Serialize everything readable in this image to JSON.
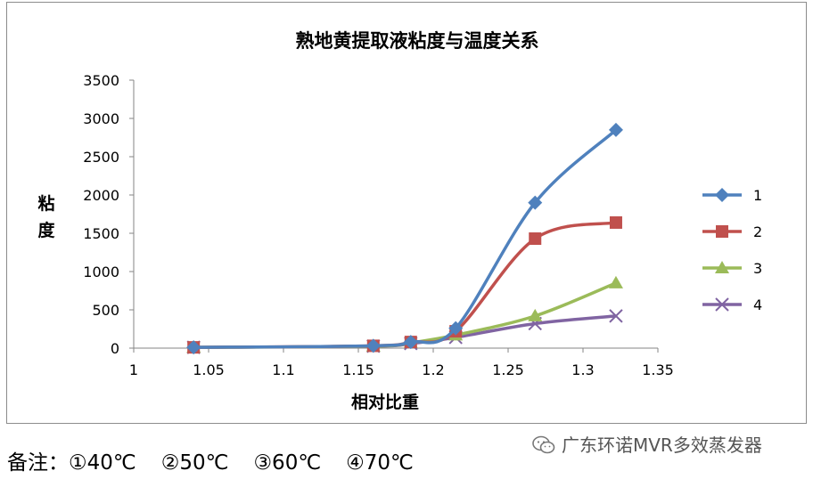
{
  "chart_data": {
    "type": "line",
    "title": "熟地黄提取液粘度与温度关系",
    "xlabel": "相对比重",
    "ylabel": "粘度",
    "xlim": [
      1,
      1.35
    ],
    "ylim": [
      0,
      3500
    ],
    "xticks": [
      "1",
      "1.05",
      "1.1",
      "1.15",
      "1.2",
      "1.25",
      "1.3",
      "1.35"
    ],
    "yticks": [
      "0",
      "500",
      "1000",
      "1500",
      "2000",
      "2500",
      "3000",
      "3500"
    ],
    "legend_position": "right",
    "series": [
      {
        "name": "1",
        "color": "#4F81BD",
        "marker": "diamond",
        "x": [
          1.04,
          1.16,
          1.185,
          1.215,
          1.268,
          1.322
        ],
        "y": [
          10,
          30,
          80,
          260,
          1900,
          2850
        ]
      },
      {
        "name": "2",
        "color": "#C0504D",
        "marker": "square",
        "x": [
          1.04,
          1.16,
          1.185,
          1.215,
          1.268,
          1.322
        ],
        "y": [
          10,
          30,
          80,
          220,
          1430,
          1640
        ]
      },
      {
        "name": "3",
        "color": "#9BBB59",
        "marker": "triangle",
        "x": [
          1.04,
          1.16,
          1.185,
          1.215,
          1.268,
          1.322
        ],
        "y": [
          10,
          25,
          70,
          170,
          420,
          850
        ]
      },
      {
        "name": "4",
        "color": "#8064A2",
        "marker": "x",
        "x": [
          1.04,
          1.16,
          1.185,
          1.215,
          1.268,
          1.322
        ],
        "y": [
          10,
          25,
          60,
          140,
          320,
          420
        ]
      }
    ]
  },
  "note": {
    "label": "备注：",
    "items": [
      "①40℃",
      "②50℃",
      "③60℃",
      "④70℃"
    ]
  },
  "watermark": {
    "text": "广东环诺MVR多效蒸发器",
    "icon": "wechat-icon"
  }
}
